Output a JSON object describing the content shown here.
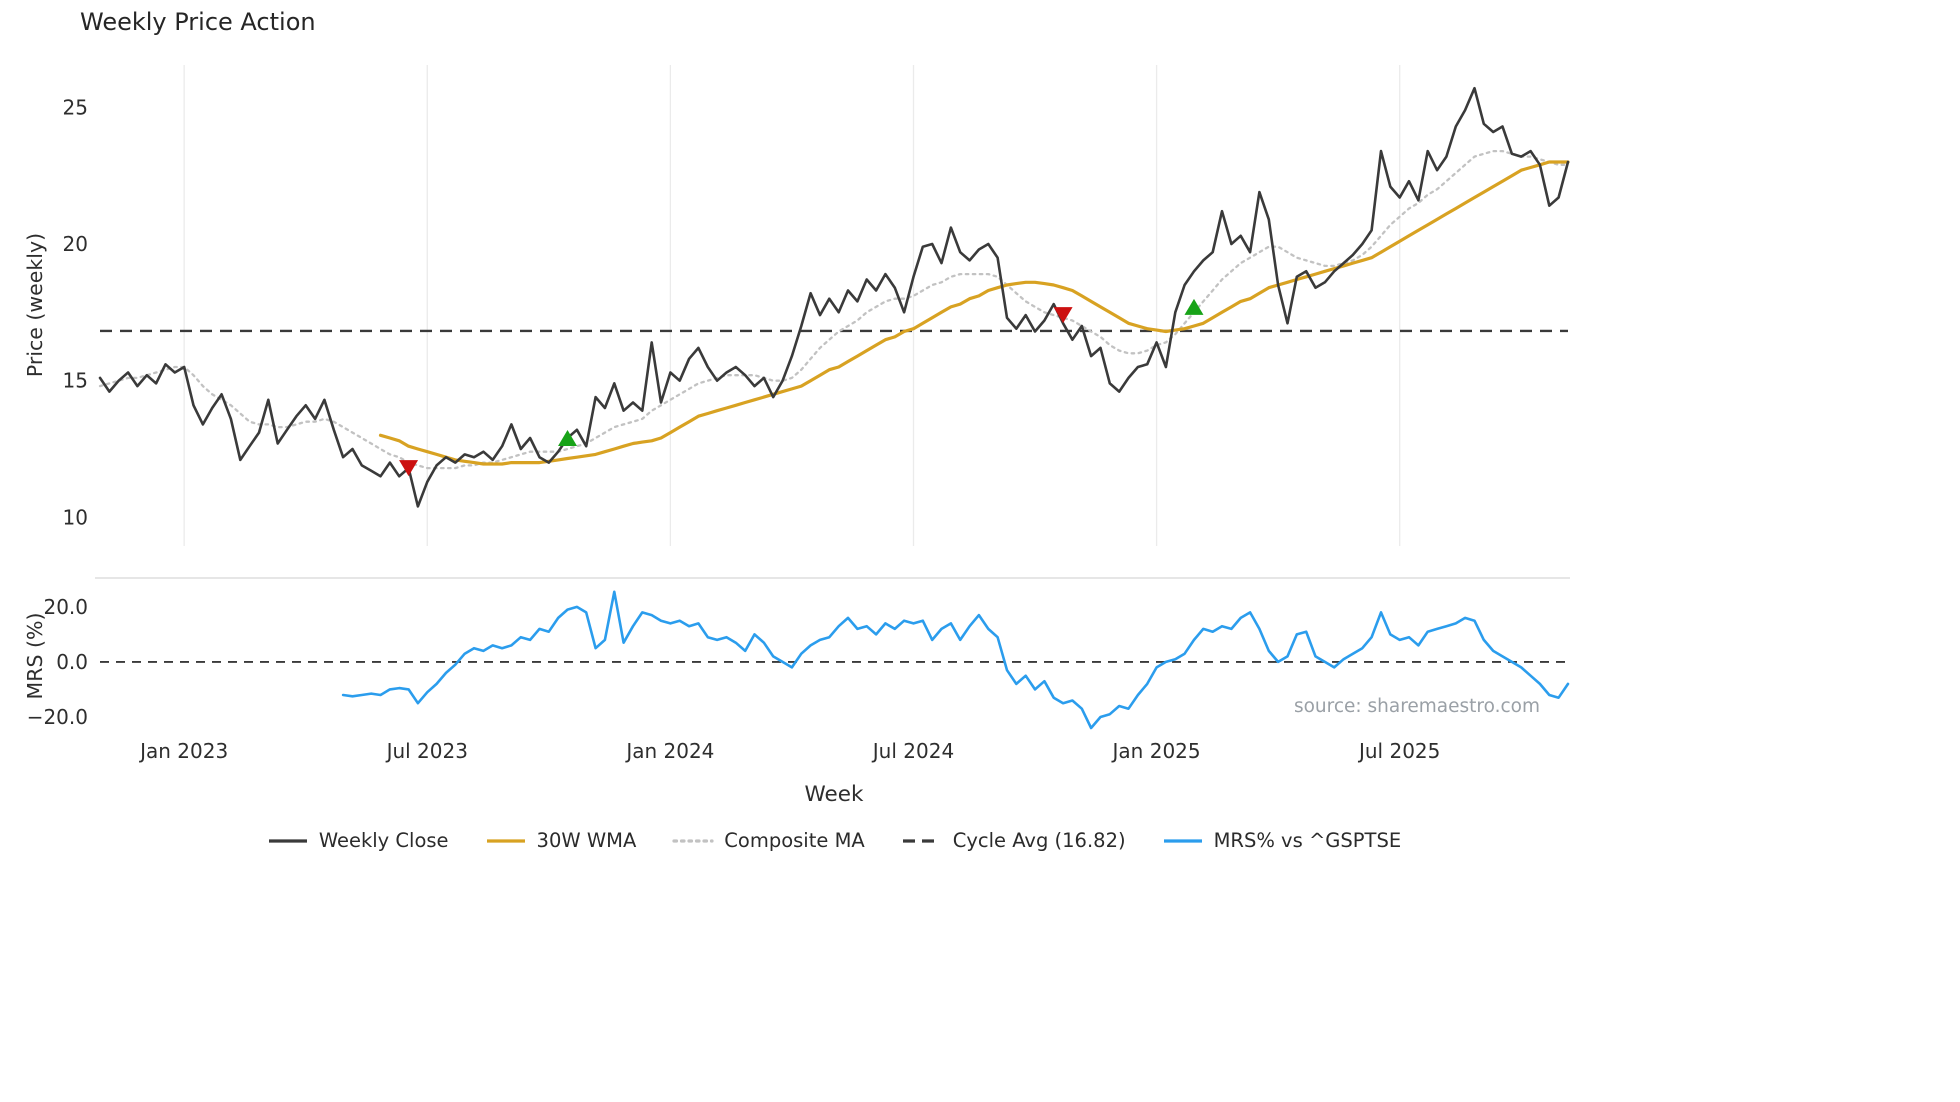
{
  "title": "Weekly Price Action",
  "watermark": "source: sharemaestro.com",
  "chart_data": {
    "type": "line",
    "title": "Weekly Price Action",
    "xlabel": "Week",
    "x": {
      "total_weeks": 158,
      "tick_labels": [
        "Jan 2023",
        "Jul 2023",
        "Jan 2024",
        "Jul 2024",
        "Jan 2025",
        "Jul 2025"
      ],
      "tick_weeks": [
        9,
        35,
        61,
        87,
        113,
        139
      ],
      "grid": true
    },
    "colors": {
      "sell_signal": "#cc1010",
      "buy_signal": "#18a318",
      "grid": "#ebebeb",
      "axis_text": "#2e2e2e"
    },
    "panels": [
      {
        "name": "price",
        "ylabel": "Price (weekly)",
        "ylim": [
          8.95,
          26.55
        ],
        "yticks": [
          10,
          15,
          20,
          25
        ],
        "ytick_labels": [
          "10",
          "15",
          "20",
          "25"
        ],
        "reference_line": {
          "label": "Cycle Avg (16.82)",
          "value": 16.82,
          "style": "dashed",
          "color": "#3a3a3a"
        },
        "series": [
          {
            "name": "Composite MA",
            "color": "#c2c2c2",
            "style": "dotted",
            "width": 2.3,
            "start_week": 0,
            "values": [
              14.8,
              14.9,
              15.0,
              15.1,
              15.1,
              15.2,
              15.3,
              15.4,
              15.5,
              15.5,
              15.2,
              14.8,
              14.5,
              14.3,
              14.1,
              13.8,
              13.5,
              13.4,
              13.4,
              13.3,
              13.3,
              13.4,
              13.5,
              13.5,
              13.6,
              13.5,
              13.3,
              13.1,
              12.9,
              12.7,
              12.5,
              12.3,
              12.2,
              12.0,
              11.9,
              11.8,
              11.8,
              11.8,
              11.8,
              11.9,
              11.9,
              12.0,
              12.0,
              12.1,
              12.2,
              12.3,
              12.4,
              12.4,
              12.4,
              12.4,
              12.5,
              12.6,
              12.7,
              12.9,
              13.1,
              13.3,
              13.4,
              13.5,
              13.6,
              13.9,
              14.1,
              14.3,
              14.5,
              14.7,
              14.9,
              15.0,
              15.1,
              15.2,
              15.2,
              15.2,
              15.2,
              15.1,
              15.0,
              15.0,
              15.1,
              15.4,
              15.8,
              16.2,
              16.5,
              16.8,
              17.0,
              17.2,
              17.5,
              17.7,
              17.9,
              18.0,
              18.0,
              18.1,
              18.3,
              18.5,
              18.6,
              18.8,
              18.9,
              18.9,
              18.9,
              18.9,
              18.8,
              18.5,
              18.2,
              17.9,
              17.7,
              17.5,
              17.4,
              17.3,
              17.2,
              17.0,
              16.8,
              16.6,
              16.3,
              16.1,
              16.0,
              16.0,
              16.1,
              16.3,
              16.4,
              16.7,
              17.1,
              17.5,
              17.9,
              18.3,
              18.7,
              19.0,
              19.3,
              19.5,
              19.7,
              19.9,
              19.9,
              19.7,
              19.5,
              19.4,
              19.3,
              19.2,
              19.2,
              19.3,
              19.4,
              19.6,
              19.9,
              20.3,
              20.7,
              21.0,
              21.3,
              21.5,
              21.8,
              22.0,
              22.3,
              22.6,
              22.9,
              23.2,
              23.3,
              23.4,
              23.4,
              23.3,
              23.2,
              23.2,
              23.1,
              23.0,
              22.9,
              22.9
            ]
          },
          {
            "name": "30W WMA",
            "color": "#d8a222",
            "style": "solid",
            "width": 3.2,
            "start_week": 30,
            "values": [
              13.0,
              12.9,
              12.8,
              12.6,
              12.5,
              12.4,
              12.3,
              12.2,
              12.1,
              12.05,
              12.0,
              11.95,
              11.95,
              11.95,
              12.0,
              12.0,
              12.0,
              12.0,
              12.05,
              12.1,
              12.15,
              12.2,
              12.25,
              12.3,
              12.4,
              12.5,
              12.6,
              12.7,
              12.75,
              12.8,
              12.9,
              13.1,
              13.3,
              13.5,
              13.7,
              13.8,
              13.9,
              14.0,
              14.1,
              14.2,
              14.3,
              14.4,
              14.5,
              14.6,
              14.7,
              14.8,
              15.0,
              15.2,
              15.4,
              15.5,
              15.7,
              15.9,
              16.1,
              16.3,
              16.5,
              16.6,
              16.8,
              16.9,
              17.1,
              17.3,
              17.5,
              17.7,
              17.8,
              18.0,
              18.1,
              18.3,
              18.4,
              18.5,
              18.55,
              18.6,
              18.6,
              18.55,
              18.5,
              18.4,
              18.3,
              18.1,
              17.9,
              17.7,
              17.5,
              17.3,
              17.1,
              17.0,
              16.9,
              16.85,
              16.8,
              16.85,
              16.9,
              17.0,
              17.1,
              17.3,
              17.5,
              17.7,
              17.9,
              18.0,
              18.2,
              18.4,
              18.5,
              18.6,
              18.7,
              18.8,
              18.9,
              19.0,
              19.1,
              19.2,
              19.3,
              19.4,
              19.5,
              19.7,
              19.9,
              20.1,
              20.3,
              20.5,
              20.7,
              20.9,
              21.1,
              21.3,
              21.5,
              21.7,
              21.9,
              22.1,
              22.3,
              22.5,
              22.7,
              22.8,
              22.9,
              23.0,
              23.0,
              23.0
            ]
          },
          {
            "name": "Weekly Close",
            "color": "#3a3a3a",
            "style": "solid",
            "width": 2.6,
            "start_week": 0,
            "values": [
              15.1,
              14.6,
              15.0,
              15.3,
              14.8,
              15.2,
              14.9,
              15.6,
              15.3,
              15.5,
              14.1,
              13.4,
              14.0,
              14.5,
              13.6,
              12.1,
              12.6,
              13.1,
              14.3,
              12.7,
              13.2,
              13.7,
              14.1,
              13.6,
              14.3,
              13.2,
              12.2,
              12.5,
              11.9,
              11.7,
              11.5,
              12.0,
              11.5,
              11.8,
              10.4,
              11.3,
              11.9,
              12.2,
              12.0,
              12.3,
              12.2,
              12.4,
              12.1,
              12.6,
              13.4,
              12.5,
              12.9,
              12.2,
              12.0,
              12.4,
              12.9,
              13.2,
              12.6,
              14.4,
              14.0,
              14.9,
              13.9,
              14.2,
              13.9,
              16.4,
              14.2,
              15.3,
              15.0,
              15.8,
              16.2,
              15.5,
              15.0,
              15.3,
              15.5,
              15.2,
              14.8,
              15.1,
              14.4,
              15.0,
              15.9,
              17.0,
              18.2,
              17.4,
              18.0,
              17.5,
              18.3,
              17.9,
              18.7,
              18.3,
              18.9,
              18.4,
              17.5,
              18.8,
              19.9,
              20.0,
              19.3,
              20.6,
              19.7,
              19.4,
              19.8,
              20.0,
              19.5,
              17.3,
              16.9,
              17.4,
              16.8,
              17.2,
              17.8,
              17.1,
              16.5,
              17.0,
              15.9,
              16.2,
              14.9,
              14.6,
              15.1,
              15.5,
              15.6,
              16.4,
              15.5,
              17.5,
              18.5,
              19.0,
              19.4,
              19.7,
              21.2,
              20.0,
              20.3,
              19.7,
              21.9,
              20.9,
              18.5,
              17.1,
              18.8,
              19.0,
              18.4,
              18.6,
              19.0,
              19.3,
              19.6,
              20.0,
              20.5,
              23.4,
              22.1,
              21.7,
              22.3,
              21.6,
              23.4,
              22.7,
              23.2,
              24.3,
              24.9,
              25.7,
              24.4,
              24.1,
              24.3,
              23.3,
              23.2,
              23.4,
              22.9,
              21.4,
              21.7,
              23.0
            ]
          }
        ],
        "signals": [
          {
            "type": "sell",
            "week": 33,
            "price": 11.8
          },
          {
            "type": "buy",
            "week": 50,
            "price": 12.9
          },
          {
            "type": "sell",
            "week": 103,
            "price": 17.4
          },
          {
            "type": "buy",
            "week": 117,
            "price": 17.7
          }
        ]
      },
      {
        "name": "mrs",
        "ylabel": "MRS (%)",
        "ylim": [
          -25.1,
          30.5
        ],
        "yticks": [
          -20,
          0,
          20
        ],
        "ytick_labels": [
          "−20.0",
          "0.0",
          "20.0"
        ],
        "reference_line": {
          "label": "zero",
          "value": 0,
          "style": "dashed",
          "color": "#3a3a3a"
        },
        "series": [
          {
            "name": "MRS% vs ^GSPTSE",
            "color": "#2b9ded",
            "style": "solid",
            "width": 2.6,
            "start_week": 26,
            "values": [
              -12,
              -12.5,
              -12,
              -11.5,
              -12,
              -10,
              -9.5,
              -10,
              -15,
              -11,
              -8,
              -4,
              -1,
              3,
              5,
              4,
              6,
              5,
              6,
              9,
              8,
              12,
              11,
              16,
              19,
              20,
              18,
              5,
              8,
              25.5,
              7,
              13,
              18,
              17,
              15,
              14,
              15,
              13,
              14,
              9,
              8,
              9,
              7,
              4,
              10,
              7,
              2,
              0,
              -2,
              3,
              6,
              8,
              9,
              13,
              16,
              12,
              13,
              10,
              14,
              12,
              15,
              14,
              15,
              8,
              12,
              14,
              8,
              13,
              17,
              12,
              9,
              -3,
              -8,
              -5,
              -10,
              -7,
              -13,
              -15,
              -14,
              -17,
              -24,
              -20,
              -19,
              -16,
              -17,
              -12,
              -8,
              -2,
              0,
              1,
              3,
              8,
              12,
              11,
              13,
              12,
              16,
              18,
              12,
              4,
              0,
              2,
              10,
              11,
              2,
              0,
              -2,
              1,
              3,
              5,
              9,
              18,
              10,
              8,
              9,
              6,
              11,
              12,
              13,
              14,
              16,
              15,
              8,
              4,
              2,
              0,
              -2,
              -5,
              -8,
              -12,
              -13,
              -8
            ]
          }
        ]
      }
    ],
    "legend": [
      {
        "label": "Weekly Close",
        "color": "#3a3a3a",
        "style": "solid"
      },
      {
        "label": "30W WMA",
        "color": "#d8a222",
        "style": "solid"
      },
      {
        "label": "Composite MA",
        "color": "#c2c2c2",
        "style": "dotted"
      },
      {
        "label": "Cycle Avg (16.82)",
        "color": "#3a3a3a",
        "style": "dashed"
      },
      {
        "label": "MRS% vs ^GSPTSE",
        "color": "#2b9ded",
        "style": "solid"
      }
    ]
  }
}
